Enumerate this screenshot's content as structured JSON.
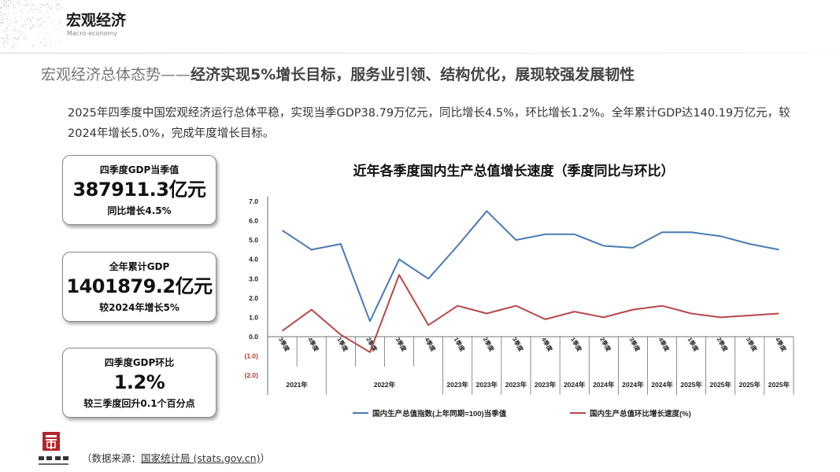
{
  "header": {
    "title": "宏观经济",
    "subtitle": "Macro-economy"
  },
  "headline": {
    "lead": "宏观经济总体态势——",
    "key": "经济实现5%增长目标，服务业引领、结构优化，展现较强发展韧性"
  },
  "summary": "2025年四季度中国宏观经济运行总体平稳，实现当季GDP38.79万亿元，同比增长4.5%，环比增长1.2%。全年累计GDP达140.19万亿元，较2024年增长5.0%，完成年度增长目标。",
  "kpis": [
    {
      "title": "四季度GDP当季值",
      "value": "387911.3亿元",
      "sub": "同比增长4.5%"
    },
    {
      "title": "全年累计GDP",
      "value": "1401879.2亿元",
      "sub": "较2024年增长5%"
    },
    {
      "title": "四季度GDP环比",
      "value": "1.2%",
      "sub": "较三季度回升0.1个百分点"
    }
  ],
  "chart_data": {
    "type": "line",
    "title": "近年各季度国内生产总值增长速度（季度同比与环比）",
    "categories": [
      {
        "q": "3季度",
        "y": "2021年"
      },
      {
        "q": "4季度",
        "y": "2021年"
      },
      {
        "q": "1季度",
        "y": "2022年"
      },
      {
        "q": "2季度",
        "y": "2022年"
      },
      {
        "q": "3季度",
        "y": "2022年"
      },
      {
        "q": "4季度",
        "y": "2022年"
      },
      {
        "q": "1季度",
        "y": "2023年"
      },
      {
        "q": "2季度",
        "y": "2023年"
      },
      {
        "q": "3季度",
        "y": "2023年"
      },
      {
        "q": "4季度",
        "y": "2023年"
      },
      {
        "q": "1季度",
        "y": "2024年"
      },
      {
        "q": "2季度",
        "y": "2024年"
      },
      {
        "q": "3季度",
        "y": "2024年"
      },
      {
        "q": "4季度",
        "y": "2024年"
      },
      {
        "q": "1季度",
        "y": "2025年"
      },
      {
        "q": "2季度",
        "y": "2025年"
      },
      {
        "q": "3季度",
        "y": "2025年"
      },
      {
        "q": "4季度",
        "y": "2025年"
      }
    ],
    "year_groups": [
      {
        "label": "2021年",
        "start": 0,
        "count": 2
      },
      {
        "label": "2022年",
        "start": 2,
        "count": 4
      },
      {
        "label": "2023年",
        "start": 6,
        "count": 1
      },
      {
        "label": "2023年",
        "start": 7,
        "count": 1
      },
      {
        "label": "2023年",
        "start": 8,
        "count": 1
      },
      {
        "label": "2023年",
        "start": 9,
        "count": 1
      },
      {
        "label": "2024年",
        "start": 10,
        "count": 1
      },
      {
        "label": "2024年",
        "start": 11,
        "count": 1
      },
      {
        "label": "2024年",
        "start": 12,
        "count": 1
      },
      {
        "label": "2024年",
        "start": 13,
        "count": 1
      },
      {
        "label": "2025年",
        "start": 14,
        "count": 1
      },
      {
        "label": "2025年",
        "start": 15,
        "count": 1
      },
      {
        "label": "2025年",
        "start": 16,
        "count": 1
      },
      {
        "label": "2025年",
        "start": 17,
        "count": 1
      }
    ],
    "series": [
      {
        "name": "国内生产总值指数(上年同期=100)当季值",
        "color": "#4a7ab7",
        "values": [
          5.5,
          4.5,
          4.8,
          0.8,
          4.0,
          3.0,
          4.7,
          6.5,
          5.0,
          5.3,
          5.3,
          4.7,
          4.6,
          5.4,
          5.4,
          5.2,
          4.8,
          4.5
        ]
      },
      {
        "name": "国内生产总值环比增长速度(%)",
        "color": "#b84848",
        "values": [
          0.3,
          1.4,
          0.1,
          -0.8,
          3.2,
          0.6,
          1.6,
          1.2,
          1.6,
          0.9,
          1.3,
          1.0,
          1.4,
          1.6,
          1.2,
          1.0,
          1.1,
          1.2
        ]
      }
    ],
    "y_ticks": [
      {
        "v": 7.0,
        "label": "7.0"
      },
      {
        "v": 6.0,
        "label": "6.0"
      },
      {
        "v": 5.0,
        "label": "5.0"
      },
      {
        "v": 4.0,
        "label": "4.0"
      },
      {
        "v": 3.0,
        "label": "3.0"
      },
      {
        "v": 2.0,
        "label": "2.0"
      },
      {
        "v": 1.0,
        "label": "1.0"
      },
      {
        "v": 0.0,
        "label": "0.0"
      },
      {
        "v": -1.0,
        "label": "(1.0)"
      },
      {
        "v": -2.0,
        "label": "(2.0)"
      }
    ],
    "ylim": [
      -2,
      7
    ],
    "legend_position": "bottom"
  },
  "source": {
    "prefix": "（数据来源：",
    "link": "国家统计局 (stats.gov.cn)",
    "suffix": "）"
  },
  "colors": {
    "blue": "#4a7ab7",
    "red": "#b84848",
    "negative_tick": "#c0392b"
  }
}
